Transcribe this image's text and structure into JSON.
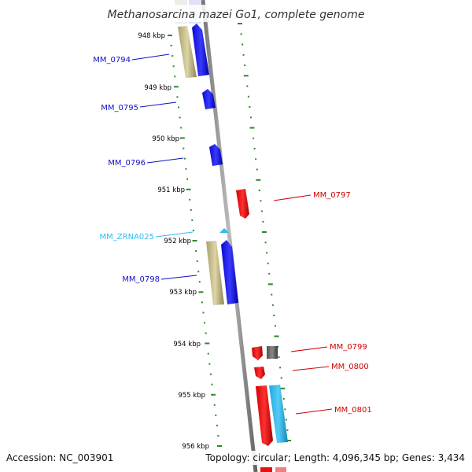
{
  "title": "Methanosarcina mazei Go1, complete genome",
  "colors": {
    "forward": "#1010e8",
    "reverse": "#e81010",
    "rna": "#33bbee",
    "cds_parent": "#c8c08a",
    "backbone": "#999999",
    "dots": "#2a8a2a",
    "gray_feature": "#666666"
  },
  "scale_labels": [
    "948 kbp",
    "949 kbp",
    "950 kbp",
    "951 kbp",
    "952 kbp",
    "953 kbp",
    "954 kbp",
    "955 kbp",
    "956 kbp"
  ],
  "genes": [
    {
      "label": "MM_0794",
      "strand": "forward"
    },
    {
      "label": "MM_0795",
      "strand": "forward"
    },
    {
      "label": "MM_0796",
      "strand": "forward"
    },
    {
      "label": "MM_0797",
      "strand": "reverse"
    },
    {
      "label": "MM_ZRNA025",
      "strand": "rna"
    },
    {
      "label": "MM_0798",
      "strand": "forward"
    },
    {
      "label": "MM_0799",
      "strand": "reverse"
    },
    {
      "label": "MM_0800",
      "strand": "reverse"
    },
    {
      "label": "MM_0801",
      "strand": "reverse"
    }
  ],
  "footer": {
    "accession": "Accession: NC_003901",
    "topology": "Topology: circular; Length: 4,096,345 bp; Genes: 3,434"
  }
}
